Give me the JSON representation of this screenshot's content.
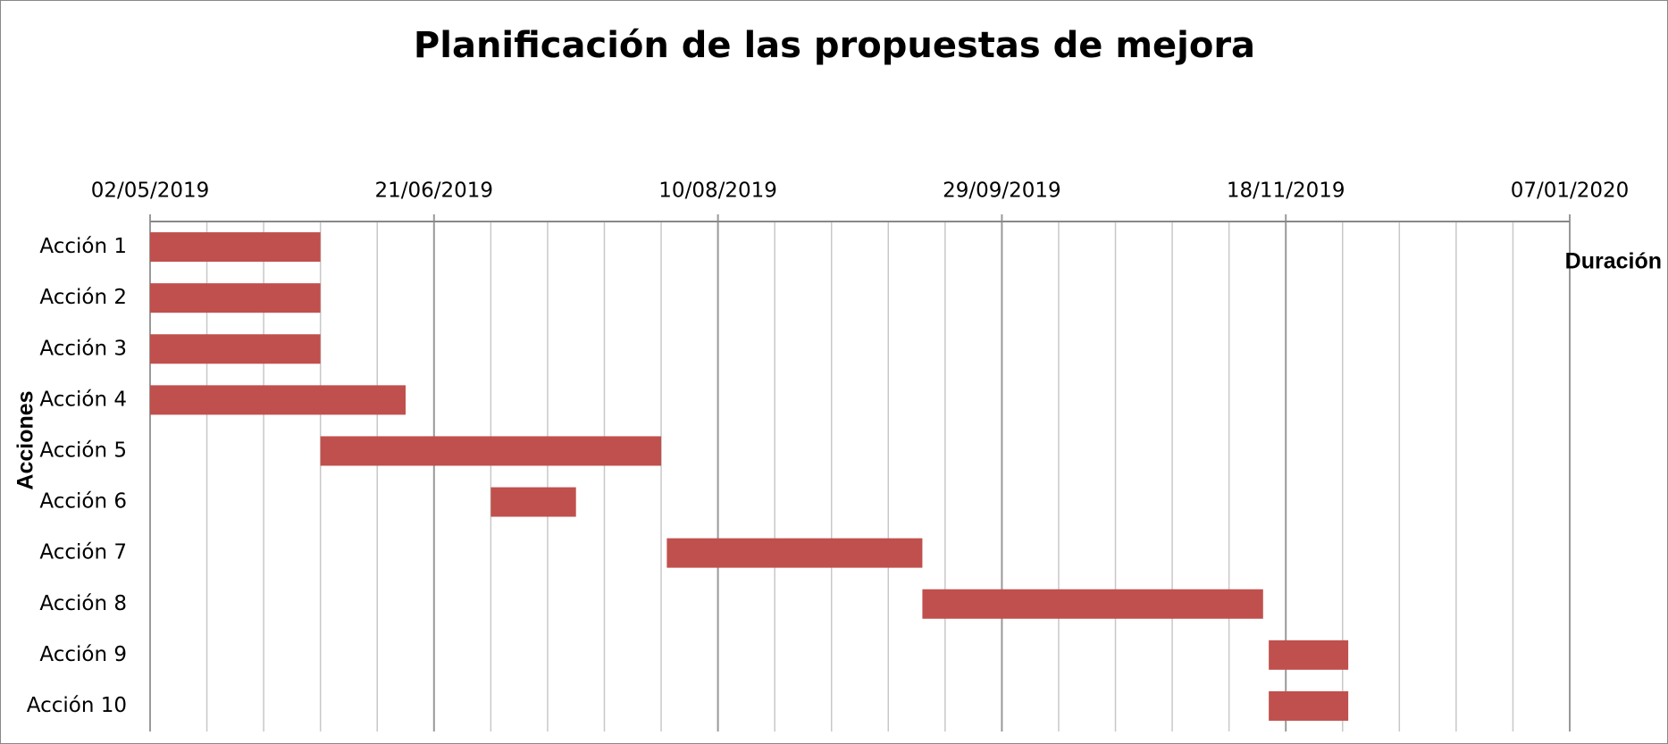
{
  "chart_data": {
    "type": "gantt",
    "title": "Planificación de las propuestas de mejora",
    "y_label": "Acciones",
    "categories": [
      "Acción 1",
      "Acción 2",
      "Acción 3",
      "Acción 4",
      "Acción 5",
      "Acción 6",
      "Acción 7",
      "Acción 8",
      "Acción 9",
      "Acción 10"
    ],
    "starts": [
      43587,
      43587,
      43587,
      43587,
      43617,
      43647,
      43678,
      43723,
      43784,
      43784
    ],
    "series": [
      {
        "name": "Duración",
        "color": "#c0504d",
        "values": [
          30,
          30,
          30,
          45,
          60,
          15,
          45,
          60,
          14,
          14
        ]
      }
    ],
    "xlim": [
      43587,
      43837
    ],
    "xticks": [
      {
        "value": 43587,
        "label": "02/05/2019"
      },
      {
        "value": 43637,
        "label": "21/06/2019"
      },
      {
        "value": 43687,
        "label": "10/08/2019"
      },
      {
        "value": 43737,
        "label": "29/09/2019"
      },
      {
        "value": 43787,
        "label": "18/11/2019"
      },
      {
        "value": 43837,
        "label": "07/01/2020"
      }
    ],
    "xminor_ticks": [
      43597,
      43607,
      43617,
      43627,
      43647,
      43657,
      43667,
      43677,
      43697,
      43707,
      43717,
      43727,
      43747,
      43757,
      43767,
      43777,
      43797,
      43807,
      43817,
      43827
    ],
    "grid": true,
    "legend": "right"
  }
}
